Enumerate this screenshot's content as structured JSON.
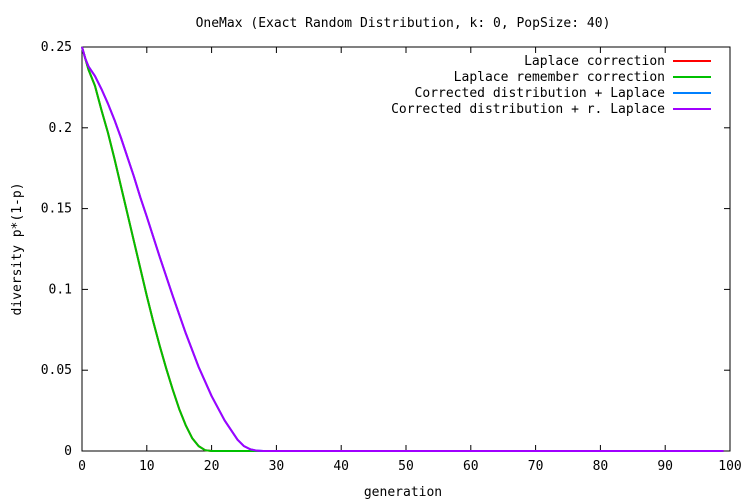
{
  "chart_data": {
    "type": "line",
    "title": "OneMax (Exact Random Distribution, k: 0, PopSize: 40)",
    "xlabel": "generation",
    "ylabel": "diversity p*(1-p)",
    "xlim": [
      0,
      100
    ],
    "ylim": [
      0,
      0.25
    ],
    "x_ticks": [
      "0",
      "10",
      "20",
      "30",
      "40",
      "50",
      "60",
      "70",
      "80",
      "90",
      "100"
    ],
    "y_ticks": [
      "0",
      "0.05",
      "0.1",
      "0.15",
      "0.2",
      "0.25"
    ],
    "grid": false,
    "legend_position": "top-right",
    "series": [
      {
        "name": "Laplace correction",
        "color": "#ff0000",
        "x": [
          0,
          0.5,
          1,
          2,
          3,
          4,
          5,
          6,
          7,
          8,
          9,
          10,
          11,
          12,
          13,
          14,
          15,
          16,
          17,
          18,
          19,
          20,
          25,
          30,
          40,
          50,
          60,
          70,
          80,
          90,
          99
        ],
        "y": [
          0.25,
          0.243,
          0.236,
          0.226,
          0.211,
          0.197,
          0.181,
          0.164,
          0.147,
          0.13,
          0.113,
          0.096,
          0.08,
          0.065,
          0.051,
          0.038,
          0.026,
          0.016,
          0.008,
          0.003,
          0.0005,
          0,
          0,
          0,
          0,
          0,
          0,
          0,
          0,
          0,
          0
        ]
      },
      {
        "name": "Laplace remember correction",
        "color": "#00c000",
        "x": [
          0,
          0.5,
          1,
          2,
          3,
          4,
          5,
          6,
          7,
          8,
          9,
          10,
          11,
          12,
          13,
          14,
          15,
          16,
          17,
          18,
          19,
          20,
          25,
          30,
          40,
          50,
          60,
          70,
          80,
          90,
          99
        ],
        "y": [
          0.25,
          0.243,
          0.236,
          0.226,
          0.211,
          0.197,
          0.181,
          0.164,
          0.147,
          0.13,
          0.113,
          0.096,
          0.08,
          0.065,
          0.051,
          0.038,
          0.026,
          0.016,
          0.008,
          0.003,
          0.0005,
          0,
          0,
          0,
          0,
          0,
          0,
          0,
          0,
          0,
          0
        ]
      },
      {
        "name": "Corrected distribution + Laplace",
        "color": "#0080ff",
        "x": [
          0,
          0.5,
          1,
          2,
          3,
          4,
          5,
          6,
          7,
          8,
          9,
          10,
          12,
          14,
          16,
          18,
          20,
          22,
          24,
          25,
          26,
          27,
          28,
          30,
          40,
          50,
          60,
          70,
          80,
          90,
          99
        ],
        "y": [
          0.25,
          0.243,
          0.238,
          0.232,
          0.224,
          0.215,
          0.205,
          0.194,
          0.182,
          0.17,
          0.157,
          0.145,
          0.12,
          0.096,
          0.073,
          0.052,
          0.034,
          0.019,
          0.007,
          0.003,
          0.001,
          0.0002,
          0,
          0,
          0,
          0,
          0,
          0,
          0,
          0,
          0
        ]
      },
      {
        "name": "Corrected distribution + r. Laplace",
        "color": "#a000ff",
        "x": [
          0,
          0.5,
          1,
          2,
          3,
          4,
          5,
          6,
          7,
          8,
          9,
          10,
          12,
          14,
          16,
          18,
          20,
          22,
          24,
          25,
          26,
          27,
          28,
          30,
          40,
          50,
          60,
          70,
          80,
          90,
          99
        ],
        "y": [
          0.25,
          0.243,
          0.238,
          0.232,
          0.224,
          0.215,
          0.205,
          0.194,
          0.182,
          0.17,
          0.157,
          0.145,
          0.12,
          0.096,
          0.073,
          0.052,
          0.034,
          0.019,
          0.007,
          0.003,
          0.001,
          0.0002,
          0,
          0,
          0,
          0,
          0,
          0,
          0,
          0,
          0
        ]
      }
    ]
  }
}
